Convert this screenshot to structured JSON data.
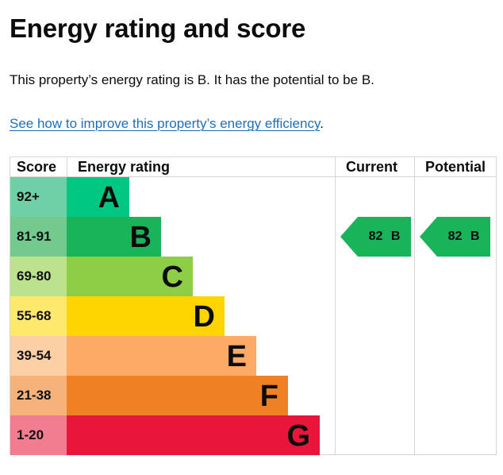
{
  "page": {
    "title": "Energy rating and score",
    "summary": "This property’s energy rating is B. It has the potential to be B.",
    "improve_link": "See how to improve this property’s energy efficiency",
    "improve_link_suffix": "."
  },
  "graph": {
    "headers": {
      "score": "Score",
      "rating": "Energy rating",
      "current": "Current",
      "potential": "Potential"
    },
    "bands": [
      {
        "score": "92+",
        "letter": "A",
        "bar_color": "#00c781",
        "score_color": "#6fcfa6"
      },
      {
        "score": "81-91",
        "letter": "B",
        "bar_color": "#19b459",
        "score_color": "#74c98f"
      },
      {
        "score": "69-80",
        "letter": "C",
        "bar_color": "#8dce46",
        "score_color": "#bde28e"
      },
      {
        "score": "55-68",
        "letter": "D",
        "bar_color": "#ffd500",
        "score_color": "#ffe86e"
      },
      {
        "score": "39-54",
        "letter": "E",
        "bar_color": "#fcaa65",
        "score_color": "#fdcfa5"
      },
      {
        "score": "21-38",
        "letter": "F",
        "bar_color": "#ef8023",
        "score_color": "#f5b37b"
      },
      {
        "score": "1-20",
        "letter": "G",
        "bar_color": "#e9153b",
        "score_color": "#f27d90"
      }
    ],
    "current": {
      "score": "82",
      "band": "B",
      "label": "82 B",
      "color": "#19b459"
    },
    "potential": {
      "score": "82",
      "band": "B",
      "label": "82 B",
      "color": "#19b459"
    }
  }
}
